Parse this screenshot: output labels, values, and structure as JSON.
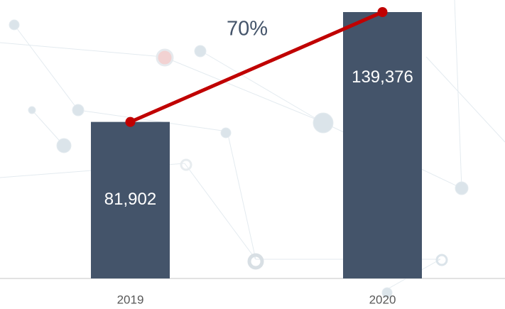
{
  "chart_data": {
    "type": "bar",
    "categories": [
      "2019",
      "2020"
    ],
    "values": [
      81902,
      139376
    ],
    "value_labels": [
      "81,902",
      "139,376"
    ],
    "color": "#44546a",
    "line_color": "#c00000",
    "annotation": "70%"
  }
}
